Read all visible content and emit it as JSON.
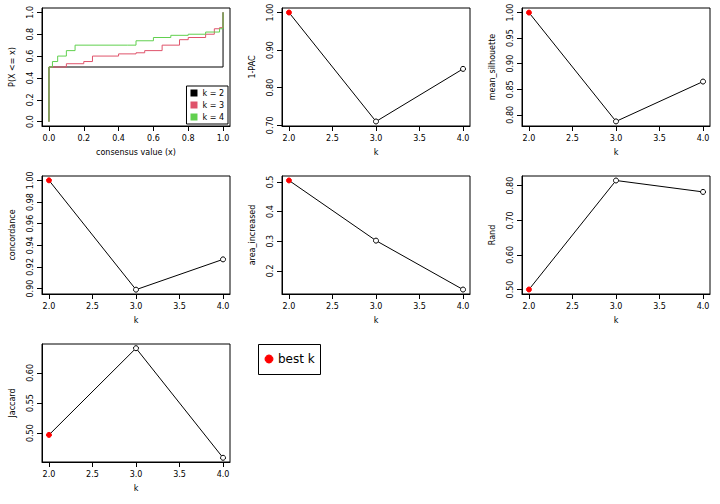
{
  "chart_data": [
    {
      "type": "step",
      "x_label": "consensus value (x)",
      "y_label": "P(X <= x)",
      "series": [
        {
          "name": "k = 2",
          "color": "#000000",
          "x": [
            0,
            0,
            1,
            1
          ],
          "values": [
            0,
            0.5,
            0.5,
            1
          ]
        },
        {
          "name": "k = 3",
          "color": "#DF536B",
          "x": [
            0,
            0,
            0.05,
            0.1,
            0.2,
            0.25,
            0.4,
            0.5,
            0.55,
            0.65,
            0.75,
            0.8,
            0.9,
            0.95,
            0.98,
            1,
            1
          ],
          "values": [
            0,
            0.5,
            0.5,
            0.53,
            0.55,
            0.6,
            0.62,
            0.63,
            0.65,
            0.7,
            0.75,
            0.77,
            0.8,
            0.85,
            0.86,
            0.86,
            1
          ]
        },
        {
          "name": "k = 4",
          "color": "#61D04F",
          "x": [
            0,
            0,
            0.02,
            0.05,
            0.1,
            0.15,
            0.45,
            0.5,
            0.6,
            0.7,
            0.8,
            0.9,
            0.98,
            1,
            1
          ],
          "values": [
            0,
            0.5,
            0.55,
            0.6,
            0.65,
            0.7,
            0.7,
            0.74,
            0.77,
            0.79,
            0.8,
            0.82,
            0.85,
            0.85,
            1
          ]
        }
      ],
      "xlim": [
        -0.04,
        1.04
      ],
      "xticks": [
        {
          "value": 0,
          "label": "0.0"
        },
        {
          "value": 0.2,
          "label": "0.2"
        },
        {
          "value": 0.4,
          "label": "0.4"
        },
        {
          "value": 0.6,
          "label": "0.6"
        },
        {
          "value": 0.8,
          "label": "0.8"
        },
        {
          "value": 1,
          "label": "1.0"
        }
      ],
      "ylim": [
        -0.04,
        1.04
      ],
      "yticks": [
        {
          "value": 0,
          "label": "0.0"
        },
        {
          "value": 0.2,
          "label": "0.2"
        },
        {
          "value": 0.4,
          "label": "0.4"
        },
        {
          "value": 0.6,
          "label": "0.6"
        },
        {
          "value": 0.8,
          "label": "0.8"
        },
        {
          "value": 1,
          "label": "1.0"
        }
      ],
      "legend": "bottom-right",
      "grid": false
    },
    {
      "type": "line",
      "x_label": "k",
      "y_label": "1-PAC",
      "color": "#000000",
      "marker": "circle",
      "x": [
        2,
        3,
        4
      ],
      "values": [
        1.0,
        0.71,
        0.85
      ],
      "colors": [
        "#FF0000",
        "#000000",
        "#000000"
      ],
      "xlim": [
        1.92,
        4.08
      ],
      "xticks": [
        {
          "value": 2,
          "label": "2.0"
        },
        {
          "value": 2.5,
          "label": "2.5"
        },
        {
          "value": 3,
          "label": "3.0"
        },
        {
          "value": 3.5,
          "label": "3.5"
        },
        {
          "value": 4,
          "label": "4.0"
        }
      ],
      "ylim": [
        0.698,
        1.012
      ],
      "yticks": [
        {
          "value": 0.7,
          "label": "0.70"
        },
        {
          "value": 0.8,
          "label": "0.80"
        },
        {
          "value": 0.9,
          "label": "0.90"
        },
        {
          "value": 1,
          "label": "1.00"
        }
      ],
      "grid": false
    },
    {
      "type": "line",
      "x_label": "k",
      "y_label": "mean_silhouette",
      "color": "#000000",
      "marker": "circle",
      "x": [
        2,
        3,
        4
      ],
      "values": [
        1.0,
        0.787,
        0.865
      ],
      "colors": [
        "#FF0000",
        "#000000",
        "#000000"
      ],
      "xlim": [
        1.92,
        4.08
      ],
      "xticks": [
        {
          "value": 2,
          "label": "2.0"
        },
        {
          "value": 2.5,
          "label": "2.5"
        },
        {
          "value": 3,
          "label": "3.0"
        },
        {
          "value": 3.5,
          "label": "3.5"
        },
        {
          "value": 4,
          "label": "4.0"
        }
      ],
      "ylim": [
        0.778,
        1.009
      ],
      "yticks": [
        {
          "value": 0.8,
          "label": "0.80"
        },
        {
          "value": 0.85,
          "label": "0.85"
        },
        {
          "value": 0.9,
          "label": "0.90"
        },
        {
          "value": 0.95,
          "label": "0.95"
        },
        {
          "value": 1,
          "label": "1.00"
        }
      ],
      "grid": false
    },
    {
      "type": "line",
      "x_label": "k",
      "y_label": "concordance",
      "color": "#000000",
      "marker": "circle",
      "x": [
        2,
        3,
        4
      ],
      "values": [
        1.0,
        0.899,
        0.927
      ],
      "colors": [
        "#FF0000",
        "#000000",
        "#000000"
      ],
      "xlim": [
        1.92,
        4.08
      ],
      "xticks": [
        {
          "value": 2,
          "label": "2.0"
        },
        {
          "value": 2.5,
          "label": "2.5"
        },
        {
          "value": 3,
          "label": "3.0"
        },
        {
          "value": 3.5,
          "label": "3.5"
        },
        {
          "value": 4,
          "label": "4.0"
        }
      ],
      "ylim": [
        0.895,
        1.004
      ],
      "yticks": [
        {
          "value": 0.9,
          "label": "0.90"
        },
        {
          "value": 0.92,
          "label": "0.92"
        },
        {
          "value": 0.94,
          "label": "0.94"
        },
        {
          "value": 0.96,
          "label": "0.96"
        },
        {
          "value": 0.98,
          "label": "0.98"
        },
        {
          "value": 1,
          "label": "1.00"
        }
      ],
      "grid": false
    },
    {
      "type": "line",
      "x_label": "k",
      "y_label": "area_increased",
      "color": "#000000",
      "marker": "circle",
      "x": [
        2,
        3,
        4
      ],
      "values": [
        0.505,
        0.302,
        0.137
      ],
      "colors": [
        "#FF0000",
        "#000000",
        "#000000"
      ],
      "xlim": [
        1.92,
        4.08
      ],
      "xticks": [
        {
          "value": 2,
          "label": "2.0"
        },
        {
          "value": 2.5,
          "label": "2.5"
        },
        {
          "value": 3,
          "label": "3.0"
        },
        {
          "value": 3.5,
          "label": "3.5"
        },
        {
          "value": 4,
          "label": "4.0"
        }
      ],
      "ylim": [
        0.122,
        0.52
      ],
      "yticks": [
        0.2,
        0.3,
        0.4,
        0.5
      ],
      "grid": false
    },
    {
      "type": "line",
      "x_label": "k",
      "y_label": "Rand",
      "color": "#000000",
      "marker": "circle",
      "x": [
        2,
        3,
        4
      ],
      "values": [
        0.5,
        0.815,
        0.782
      ],
      "colors": [
        "#FF0000",
        "#000000",
        "#000000"
      ],
      "xlim": [
        1.92,
        4.08
      ],
      "xticks": [
        {
          "value": 2,
          "label": "2.0"
        },
        {
          "value": 2.5,
          "label": "2.5"
        },
        {
          "value": 3,
          "label": "3.0"
        },
        {
          "value": 3.5,
          "label": "3.5"
        },
        {
          "value": 4,
          "label": "4.0"
        }
      ],
      "ylim": [
        0.487,
        0.828
      ],
      "yticks": [
        {
          "value": 0.5,
          "label": "0.50"
        },
        {
          "value": 0.6,
          "label": "0.60"
        },
        {
          "value": 0.7,
          "label": "0.70"
        },
        {
          "value": 0.8,
          "label": "0.80"
        }
      ],
      "grid": false
    },
    {
      "type": "line",
      "x_label": "k",
      "y_label": "Jaccard",
      "color": "#000000",
      "marker": "circle",
      "x": [
        2,
        3,
        4
      ],
      "values": [
        0.497,
        0.641,
        0.459
      ],
      "colors": [
        "#FF0000",
        "#000000",
        "#000000"
      ],
      "xlim": [
        1.92,
        4.08
      ],
      "xticks": [
        {
          "value": 2,
          "label": "2.0"
        },
        {
          "value": 2.5,
          "label": "2.5"
        },
        {
          "value": 3,
          "label": "3.0"
        },
        {
          "value": 3.5,
          "label": "3.5"
        },
        {
          "value": 4,
          "label": "4.0"
        }
      ],
      "ylim": [
        0.452,
        0.648
      ],
      "yticks": [
        {
          "value": 0.5,
          "label": "0.50"
        },
        {
          "value": 0.55,
          "label": "0.55"
        },
        {
          "value": 0.6,
          "label": "0.60"
        }
      ],
      "grid": false
    },
    {
      "type": "legend",
      "series": [
        {
          "name": "best k",
          "color": "#FF0000",
          "marker": "circle"
        }
      ]
    }
  ]
}
